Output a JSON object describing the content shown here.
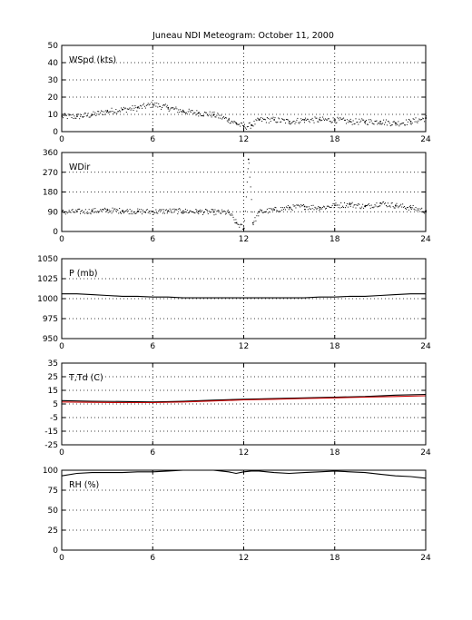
{
  "title": "Juneau NDI Meteogram:    October 11, 2000",
  "chart_data": [
    {
      "type": "scatter",
      "label": "WSpd (kts)",
      "xlim": [
        0,
        24
      ],
      "ylim": [
        0,
        50
      ],
      "xticks": [
        0,
        6,
        12,
        18,
        24
      ],
      "yticks": [
        0,
        10,
        20,
        30,
        40,
        50
      ],
      "grid": true,
      "series": [
        {
          "color": "#000000",
          "x": [
            0,
            1,
            2,
            3,
            4,
            5,
            6,
            7,
            8,
            9,
            10,
            11,
            11.5,
            12,
            12.5,
            13,
            14,
            15,
            16,
            17,
            18,
            19,
            20,
            21,
            22,
            23,
            24
          ],
          "y": [
            9,
            9,
            10,
            12,
            13,
            14,
            16,
            14,
            12,
            11,
            10,
            7,
            5,
            3,
            4,
            7,
            7,
            6,
            7,
            7,
            7,
            6,
            6,
            6,
            5,
            6,
            8
          ]
        }
      ]
    },
    {
      "type": "scatter",
      "label": "WDir",
      "xlim": [
        0,
        24
      ],
      "ylim": [
        0,
        360
      ],
      "xticks": [
        0,
        6,
        12,
        18,
        24
      ],
      "yticks": [
        0,
        90,
        180,
        270,
        360
      ],
      "grid": true,
      "series": [
        {
          "color": "#000000",
          "x": [
            0,
            1,
            2,
            3,
            4,
            5,
            6,
            7,
            8,
            9,
            10,
            11,
            11.5,
            12,
            12.3,
            12.6,
            13,
            14,
            15,
            16,
            17,
            18,
            19,
            20,
            21,
            22,
            23,
            24
          ],
          "y": [
            90,
            92,
            95,
            98,
            96,
            93,
            92,
            95,
            94,
            92,
            90,
            88,
            40,
            15,
            330,
            40,
            90,
            100,
            110,
            115,
            110,
            120,
            125,
            115,
            130,
            120,
            110,
            95
          ]
        }
      ]
    },
    {
      "type": "line",
      "label": "P (mb)",
      "xlim": [
        0,
        24
      ],
      "ylim": [
        950,
        1050
      ],
      "xticks": [
        0,
        6,
        12,
        18,
        24
      ],
      "yticks": [
        950,
        975,
        1000,
        1025,
        1050
      ],
      "grid": true,
      "series": [
        {
          "color": "#000000",
          "x": [
            0,
            1,
            2,
            3,
            4,
            5,
            6,
            7,
            8,
            9,
            10,
            11,
            12,
            13,
            14,
            15,
            16,
            17,
            18,
            19,
            20,
            21,
            22,
            23,
            24
          ],
          "y": [
            1006,
            1006,
            1005,
            1004,
            1003,
            1003,
            1002,
            1002,
            1001,
            1001,
            1001,
            1001,
            1001,
            1001,
            1001,
            1001,
            1001,
            1002,
            1002,
            1003,
            1003,
            1004,
            1005,
            1006,
            1006
          ]
        }
      ]
    },
    {
      "type": "line",
      "label": "T,Td (C)",
      "xlim": [
        0,
        24
      ],
      "ylim": [
        -25,
        35
      ],
      "xticks": [
        0,
        6,
        12,
        18,
        24
      ],
      "yticks": [
        -25,
        -15,
        -5,
        5,
        15,
        25,
        35
      ],
      "grid": true,
      "series": [
        {
          "color": "#000000",
          "x": [
            0,
            2,
            4,
            6,
            8,
            10,
            12,
            14,
            16,
            18,
            20,
            22,
            24
          ],
          "y": [
            7.5,
            7,
            6.8,
            6.5,
            7,
            7.8,
            8.5,
            9,
            9.5,
            10,
            10.5,
            11.5,
            12
          ]
        },
        {
          "color": "#cc0000",
          "x": [
            0,
            2,
            4,
            6,
            8,
            10,
            12,
            14,
            16,
            18,
            20,
            22,
            24
          ],
          "y": [
            6.5,
            6.2,
            6,
            6,
            6.5,
            7.2,
            8,
            8.5,
            9,
            9.5,
            10,
            10.5,
            11
          ]
        }
      ]
    },
    {
      "type": "line",
      "label": "RH (%)",
      "xlim": [
        0,
        24
      ],
      "ylim": [
        0,
        100
      ],
      "xticks": [
        0,
        6,
        12,
        18,
        24
      ],
      "yticks": [
        0,
        25,
        50,
        75,
        100
      ],
      "grid": true,
      "series": [
        {
          "color": "#000000",
          "x": [
            0,
            1,
            2,
            3,
            4,
            5,
            6,
            7,
            8,
            9,
            10,
            11,
            11.5,
            12,
            12.5,
            13,
            14,
            15,
            16,
            17,
            18,
            19,
            20,
            21,
            22,
            23,
            24
          ],
          "y": [
            93,
            96,
            97,
            97,
            97,
            98,
            98,
            99,
            100,
            100,
            100,
            98,
            96,
            98,
            99,
            99,
            97,
            96,
            97,
            98,
            99,
            98,
            97,
            95,
            93,
            92,
            90
          ]
        }
      ]
    }
  ]
}
